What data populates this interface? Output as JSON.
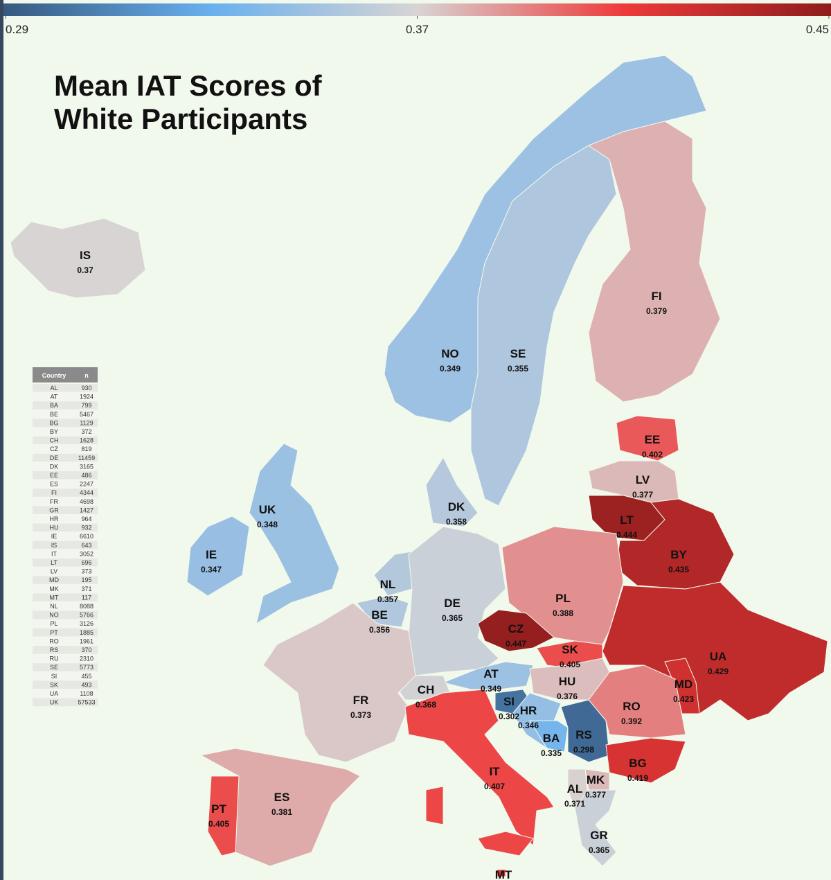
{
  "title": "Mean IAT Scores of White Participants",
  "colorbar": {
    "lim": [
      0.29,
      0.45
    ],
    "ticks": [
      0.29,
      0.37,
      0.45
    ],
    "colors": [
      "#36597f",
      "#68b0ee",
      "#d8d4d4",
      "#ee3a3a",
      "#8e1c1c"
    ]
  },
  "regions": [
    {
      "code": "IS",
      "value": 0.37
    },
    {
      "code": "NO",
      "value": 0.349
    },
    {
      "code": "SE",
      "value": 0.355
    },
    {
      "code": "FI",
      "value": 0.379
    },
    {
      "code": "EE",
      "value": 0.402
    },
    {
      "code": "LV",
      "value": 0.377
    },
    {
      "code": "LT",
      "value": 0.444
    },
    {
      "code": "BY",
      "value": 0.435
    },
    {
      "code": "UK",
      "value": 0.348
    },
    {
      "code": "IE",
      "value": 0.347
    },
    {
      "code": "DK",
      "value": 0.358
    },
    {
      "code": "NL",
      "value": 0.357
    },
    {
      "code": "BE",
      "value": 0.356
    },
    {
      "code": "DE",
      "value": 0.365
    },
    {
      "code": "PL",
      "value": 0.388
    },
    {
      "code": "CZ",
      "value": 0.447
    },
    {
      "code": "SK",
      "value": 0.405
    },
    {
      "code": "UA",
      "value": 0.429
    },
    {
      "code": "MD",
      "value": 0.423
    },
    {
      "code": "AT",
      "value": 0.349
    },
    {
      "code": "HU",
      "value": 0.376
    },
    {
      "code": "CH",
      "value": 0.368
    },
    {
      "code": "FR",
      "value": 0.373
    },
    {
      "code": "SI",
      "value": 0.302
    },
    {
      "code": "HR",
      "value": 0.346
    },
    {
      "code": "RO",
      "value": 0.392
    },
    {
      "code": "BA",
      "value": 0.335
    },
    {
      "code": "RS",
      "value": 0.298
    },
    {
      "code": "BG",
      "value": 0.419
    },
    {
      "code": "IT",
      "value": 0.407
    },
    {
      "code": "MK",
      "value": 0.377
    },
    {
      "code": "AL",
      "value": 0.371
    },
    {
      "code": "ES",
      "value": 0.381
    },
    {
      "code": "PT",
      "value": 0.405
    },
    {
      "code": "GR",
      "value": 0.365
    },
    {
      "code": "MT"
    }
  ],
  "table": {
    "header": [
      "Country",
      "n"
    ],
    "rows": [
      [
        "AL",
        930
      ],
      [
        "AT",
        1924
      ],
      [
        "BA",
        799
      ],
      [
        "BE",
        5467
      ],
      [
        "BG",
        1129
      ],
      [
        "BY",
        372
      ],
      [
        "CH",
        1628
      ],
      [
        "CZ",
        819
      ],
      [
        "DE",
        11459
      ],
      [
        "DK",
        3165
      ],
      [
        "EE",
        486
      ],
      [
        "ES",
        2247
      ],
      [
        "FI",
        4344
      ],
      [
        "FR",
        4698
      ],
      [
        "GR",
        1427
      ],
      [
        "HR",
        964
      ],
      [
        "HU",
        932
      ],
      [
        "IE",
        6610
      ],
      [
        "IS",
        643
      ],
      [
        "IT",
        3052
      ],
      [
        "LT",
        696
      ],
      [
        "LV",
        373
      ],
      [
        "MD",
        195
      ],
      [
        "MK",
        371
      ],
      [
        "MT",
        117
      ],
      [
        "NL",
        8088
      ],
      [
        "NO",
        5766
      ],
      [
        "PL",
        3126
      ],
      [
        "PT",
        1885
      ],
      [
        "RO",
        1961
      ],
      [
        "RS",
        370
      ],
      [
        "RU",
        2310
      ],
      [
        "SE",
        5773
      ],
      [
        "SI",
        455
      ],
      [
        "SK",
        493
      ],
      [
        "UA",
        1108
      ],
      [
        "UK",
        57533
      ]
    ]
  }
}
